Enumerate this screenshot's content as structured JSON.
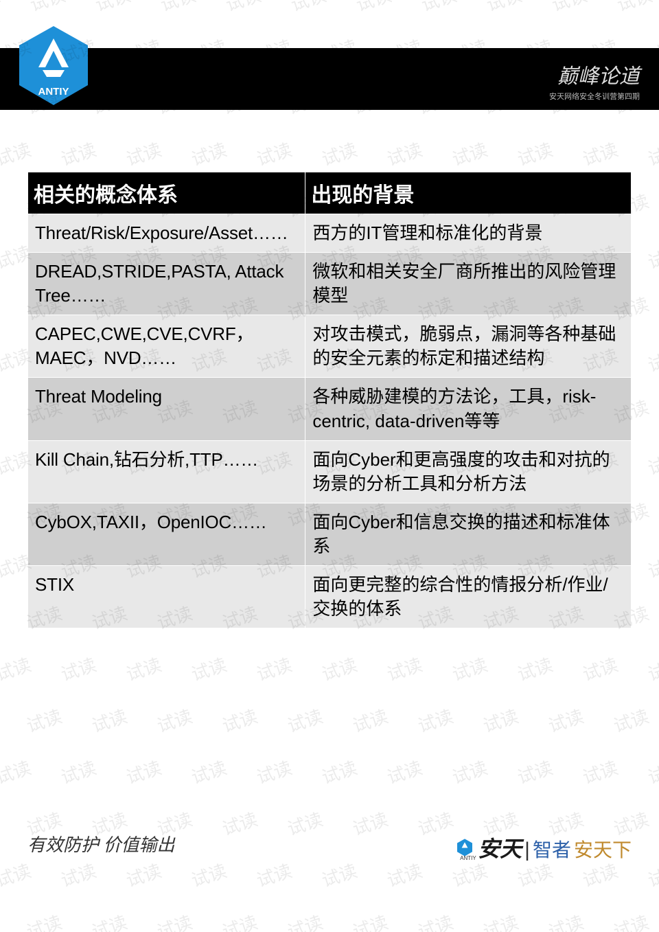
{
  "watermark": {
    "text": "试读",
    "color_rgba": "rgba(0,0,0,0.08)",
    "fontsize": 26,
    "angle_deg": -18
  },
  "header": {
    "bar_color": "#000000",
    "logo": {
      "brand": "ANTIY",
      "hex_color": "#1e90d8",
      "text_color": "#ffffff"
    },
    "topright": {
      "calligraphy": "巅峰论道",
      "subtitle": "安天网络安全冬训营第四期"
    }
  },
  "table": {
    "type": "table",
    "header_bg": "#000000",
    "header_fg": "#ffffff",
    "header_fontsize": 30,
    "cell_fontsize": 26,
    "row_bg_light": "#e8e8e8",
    "row_bg_dark": "#cfcfcf",
    "border_color": "#ffffff",
    "col_widths_pct": [
      46,
      54
    ],
    "columns": [
      "相关的概念体系",
      "出现的背景"
    ],
    "rows": [
      [
        "Threat/Risk/Exposure/Asset……",
        "西方的IT管理和标准化的背景"
      ],
      [
        "DREAD,STRIDE,PASTA, Attack Tree……",
        "微软和相关安全厂商所推出的风险管理模型"
      ],
      [
        "CAPEC,CWE,CVE,CVRF，MAEC，NVD……",
        "对攻击模式，脆弱点，漏洞等各种基础的安全元素的标定和描述结构"
      ],
      [
        "Threat Modeling",
        "各种威胁建模的方法论，工具，risk-centric, data-driven等等"
      ],
      [
        "Kill Chain,钻石分析,TTP……",
        "面向Cyber和更高强度的攻击和对抗的场景的分析工具和分析方法"
      ],
      [
        "CybOX,TAXII，OpenIOC……",
        "面向Cyber和信息交换的描述和标准体系"
      ],
      [
        "STIX",
        "面向更完整的综合性的情报分析/作业/交换的体系"
      ]
    ]
  },
  "footer": {
    "left": "有效防护 价值输出",
    "right": {
      "brand_cn": "安天",
      "mini_brand": "ANTIY",
      "slogan_blue": "智者",
      "slogan_gold": "安天下",
      "blue": "#2b5fa8",
      "gold": "#c08a2e"
    }
  }
}
